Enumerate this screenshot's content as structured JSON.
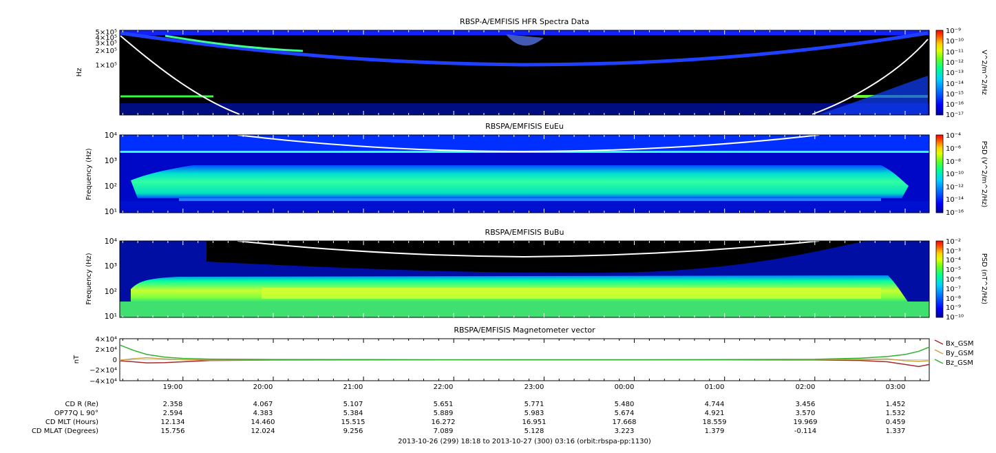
{
  "time_axis": {
    "tick_labels": [
      "19:00",
      "20:00",
      "21:00",
      "22:00",
      "23:00",
      "00:00",
      "01:00",
      "02:00",
      "03:00"
    ],
    "tick_hours": [
      19,
      20,
      21,
      22,
      23,
      24,
      25,
      26,
      27
    ],
    "start_hour": 18.3,
    "end_hour": 27.267
  },
  "orbit_rows": [
    {
      "label": "CD R (Re)",
      "values": [
        "2.358",
        "4.067",
        "5.107",
        "5.651",
        "5.771",
        "5.480",
        "4.744",
        "3.456",
        "1.452"
      ]
    },
    {
      "label": "OP77Q L 90°",
      "values": [
        "2.594",
        "4.383",
        "5.384",
        "5.889",
        "5.983",
        "5.674",
        "4.921",
        "3.570",
        "1.532"
      ]
    },
    {
      "label": "CD MLT (Hours)",
      "values": [
        "12.134",
        "14.460",
        "15.515",
        "16.272",
        "16.951",
        "17.668",
        "18.559",
        "19.969",
        "0.459"
      ]
    },
    {
      "label": "CD MLAT (Degrees)",
      "values": [
        "15.756",
        "12.024",
        "9.256",
        "7.089",
        "5.128",
        "3.223",
        "1.379",
        "-0.114",
        "1.337"
      ]
    }
  ],
  "footer_text": "2013-10-26 (299) 18:18 to 2013-10-27 (300) 03:16 (orbit:rbspa-pp:1130)",
  "chart_data": [
    {
      "type": "heatmap",
      "title": "RBSP-A/EMFISIS  HFR Spectra Data",
      "ylabel": "Hz",
      "y_scale": "log",
      "y_tick_labels": [
        "5×10⁵",
        "4×10⁵",
        "3×10⁵",
        "2×10⁵",
        "1×10⁵"
      ],
      "y_tick_values": [
        500000,
        400000,
        300000,
        200000,
        100000
      ],
      "ylim": [
        10000,
        500000
      ],
      "colorbar_label": "V^2/m^2/Hz",
      "colorbar_ticks": [
        "10⁻⁹",
        "10⁻¹⁰",
        "10⁻¹¹",
        "10⁻¹²",
        "10⁻¹³",
        "10⁻¹⁴",
        "10⁻¹⁵",
        "10⁻¹⁶",
        "10⁻¹⁷"
      ],
      "overlay_line": "white curve"
    },
    {
      "type": "heatmap",
      "title": "RBSPA/EMFISIS  EuEu",
      "ylabel": "Frequency (Hz)",
      "y_scale": "log",
      "y_tick_labels": [
        "10⁴",
        "10³",
        "10²",
        "10¹"
      ],
      "y_tick_values": [
        10000,
        1000,
        100,
        10
      ],
      "ylim": [
        10,
        12000
      ],
      "colorbar_label": "PSD (V^2/m^2/Hz)",
      "colorbar_ticks": [
        "10⁻⁴",
        "10⁻⁶",
        "10⁻⁸",
        "10⁻¹⁰",
        "10⁻¹²",
        "10⁻¹⁴",
        "10⁻¹⁶"
      ],
      "overlay_line": "white curve"
    },
    {
      "type": "heatmap",
      "title": "RBSPA/EMFISIS  BuBu",
      "ylabel": "Frequency (Hz)",
      "y_scale": "log",
      "y_tick_labels": [
        "10⁴",
        "10³",
        "10²",
        "10¹"
      ],
      "y_tick_values": [
        10000,
        1000,
        100,
        10
      ],
      "ylim": [
        10,
        12000
      ],
      "colorbar_label": "PSD (nT^2/Hz)",
      "colorbar_ticks": [
        "10⁻²",
        "10⁻³",
        "10⁻⁴",
        "10⁻⁵",
        "10⁻⁶",
        "10⁻⁷",
        "10⁻⁸",
        "10⁻⁹",
        "10⁻¹⁰"
      ],
      "overlay_line": "white curve"
    },
    {
      "type": "line",
      "title": "RBSPA/EMFISIS  Magnetometer vector",
      "ylabel": "nT",
      "y_tick_labels": [
        "4×10⁴",
        "2×10⁴",
        "0",
        "−2×10⁴",
        "−4×10⁴"
      ],
      "y_tick_values": [
        40000,
        20000,
        0,
        -20000,
        -40000
      ],
      "ylim": [
        -40000,
        40000
      ],
      "series": [
        {
          "name": "Bx_GSM",
          "color": "#a52a2a",
          "x": [
            18.3,
            18.45,
            18.6,
            18.8,
            19.0,
            19.3,
            20,
            21,
            22,
            23,
            24,
            25,
            26,
            26.5,
            26.8,
            27.0,
            27.15,
            27.267
          ],
          "values": [
            -2000,
            -4000,
            -6000,
            -5500,
            -4000,
            -1500,
            -600,
            -500,
            -300,
            -200,
            -200,
            -300,
            -500,
            -1500,
            -4000,
            -9000,
            -13000,
            -9000
          ]
        },
        {
          "name": "By_GSM",
          "color": "#c8a040",
          "x": [
            18.3,
            18.45,
            18.6,
            18.8,
            19.0,
            19.3,
            20,
            21,
            22,
            23,
            24,
            25,
            26,
            26.5,
            26.8,
            27.0,
            27.15,
            27.267
          ],
          "values": [
            -1000,
            2000,
            3500,
            1500,
            0,
            -600,
            -400,
            -300,
            -200,
            -100,
            -100,
            -100,
            0,
            500,
            1500,
            -2000,
            -3000,
            -2000
          ]
        },
        {
          "name": "Bz_GSM",
          "color": "#30b030",
          "x": [
            18.3,
            18.45,
            18.6,
            18.8,
            19.0,
            19.3,
            20,
            21,
            22,
            23,
            24,
            25,
            26,
            26.5,
            26.8,
            27.0,
            27.15,
            27.267
          ],
          "values": [
            28000,
            18000,
            10000,
            5000,
            2500,
            1200,
            500,
            200,
            0,
            0,
            0,
            200,
            800,
            3000,
            6000,
            10000,
            16000,
            24000
          ]
        }
      ]
    }
  ],
  "colors": {
    "background": "#ffffff",
    "spectrogram_bg": "#000000",
    "cmap": [
      "#00007a",
      "#0000ff",
      "#0070ff",
      "#00c8ff",
      "#00ff90",
      "#60ff30",
      "#c8ff00",
      "#ffff00",
      "#ff8000",
      "#ff0000"
    ]
  }
}
